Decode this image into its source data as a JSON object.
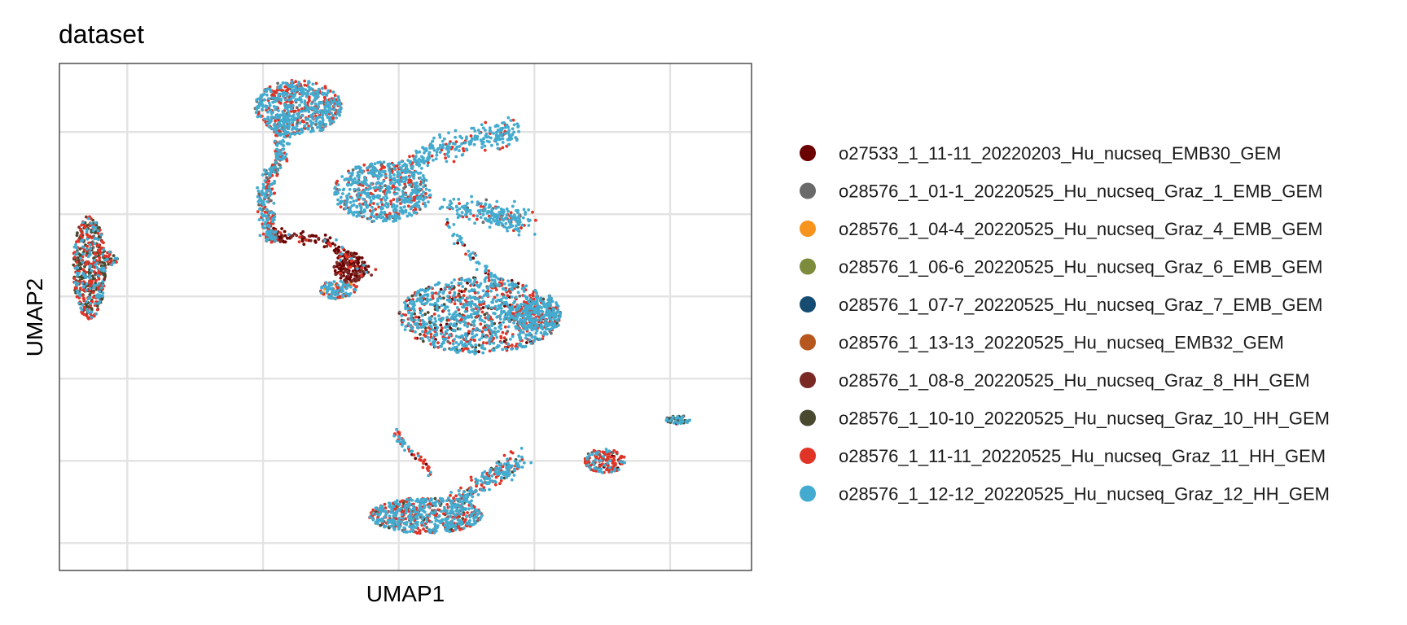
{
  "chart_data": {
    "type": "scatter",
    "title": "dataset",
    "xlabel": "UMAP1",
    "ylabel": "UMAP2",
    "xlim": [
      -15,
      10.5
    ],
    "ylim": [
      -11,
      7.5
    ],
    "xticks": [
      -12.5,
      -7.5,
      -2.5,
      2.5,
      7.5
    ],
    "yticks": [
      -10,
      -7,
      -4,
      -1,
      2,
      5
    ],
    "show_tick_labels": false,
    "grid": true,
    "legend_position": "right",
    "series": [
      {
        "name": "o27533_1_11-11_20220203_Hu_nucseq_EMB30_GEM",
        "color": "#6B0000"
      },
      {
        "name": "o28576_1_01-1_20220525_Hu_nucseq_Graz_1_EMB_GEM",
        "color": "#6A6A6A"
      },
      {
        "name": "o28576_1_04-4_20220525_Hu_nucseq_Graz_4_EMB_GEM",
        "color": "#F7941D"
      },
      {
        "name": "o28576_1_06-6_20220525_Hu_nucseq_Graz_6_EMB_GEM",
        "color": "#7D8B3C"
      },
      {
        "name": "o28576_1_07-7_20220525_Hu_nucseq_Graz_7_EMB_GEM",
        "color": "#164C72"
      },
      {
        "name": "o28576_1_13-13_20220525_Hu_nucseq_EMB32_GEM",
        "color": "#B5571E"
      },
      {
        "name": "o28576_1_08-8_20220525_Hu_nucseq_Graz_8_HH_GEM",
        "color": "#7A2925"
      },
      {
        "name": "o28576_1_10-10_20220525_Hu_nucseq_Graz_10_HH_GEM",
        "color": "#48492F"
      },
      {
        "name": "o28576_1_11-11_20220525_Hu_nucseq_Graz_11_HH_GEM",
        "color": "#E03427"
      },
      {
        "name": "o28576_1_12-12_20220525_Hu_nucseq_Graz_12_HH_GEM",
        "color": "#43ABCF"
      }
    ],
    "clusters": [
      {
        "shape": "ellipse",
        "x": -13.9,
        "y": 0.05,
        "rx": 0.6,
        "ry": 1.9,
        "n": 520,
        "mix": {
          "6": 1,
          "7": 4,
          "8": 4,
          "9": 3,
          "1": 1
        }
      },
      {
        "shape": "ellipse",
        "x": -13.1,
        "y": 0.4,
        "rx": 0.25,
        "ry": 0.25,
        "n": 30,
        "mix": {
          "7": 3,
          "8": 2,
          "9": 1
        }
      },
      {
        "shape": "ellipse",
        "x": -6.2,
        "y": 5.9,
        "rx": 1.6,
        "ry": 1.0,
        "n": 650,
        "mix": {
          "9": 8,
          "8": 3,
          "1": 1
        }
      },
      {
        "shape": "ellipse",
        "x": -6.8,
        "y": 4.8,
        "rx": 0.3,
        "ry": 0.9,
        "n": 90,
        "mix": {
          "9": 6,
          "8": 3,
          "1": 1
        }
      },
      {
        "shape": "line",
        "x": [
          -6.8,
          -7.3,
          -7.5,
          -7.3,
          -7.2
        ],
        "y": [
          4.2,
          3.4,
          2.6,
          1.8,
          1.2
        ],
        "w": 0.3,
        "n": 220,
        "mix": {
          "9": 5,
          "8": 4,
          "1": 2
        }
      },
      {
        "shape": "line",
        "x": [
          -7.3,
          -6.7,
          -5.8,
          -4.9,
          -4.4,
          -3.6
        ],
        "y": [
          1.2,
          1.2,
          1.1,
          0.9,
          0.4,
          -0.2
        ],
        "w": 0.25,
        "n": 140,
        "mix": {
          "0": 6,
          "6": 2,
          "9": 1,
          "8": 1
        }
      },
      {
        "shape": "ellipse",
        "x": -7.2,
        "y": 1.2,
        "rx": 0.25,
        "ry": 0.25,
        "n": 50,
        "mix": {
          "1": 4,
          "9": 3,
          "8": 2
        }
      },
      {
        "shape": "ellipse",
        "x": -4.3,
        "y": 0.05,
        "rx": 0.6,
        "ry": 0.55,
        "n": 150,
        "mix": {
          "0": 9,
          "6": 3,
          "8": 1
        }
      },
      {
        "shape": "ellipse",
        "x": -4.7,
        "y": -0.75,
        "rx": 0.7,
        "ry": 0.35,
        "n": 110,
        "mix": {
          "9": 6,
          "8": 3,
          "2": 1,
          "1": 1
        }
      },
      {
        "shape": "ellipse",
        "x": -3.1,
        "y": 2.8,
        "rx": 1.8,
        "ry": 1.1,
        "n": 620,
        "mix": {
          "9": 9,
          "8": 3,
          "1": 1
        }
      },
      {
        "shape": "line",
        "x": [
          -2.4,
          -1.4,
          -0.1,
          1.1,
          1.8
        ],
        "y": [
          3.6,
          4.2,
          4.6,
          4.9,
          5.0
        ],
        "w": 0.45,
        "n": 280,
        "mix": {
          "9": 9,
          "8": 2
        }
      },
      {
        "shape": "line",
        "x": [
          -0.6,
          0.6,
          1.5,
          2.2
        ],
        "y": [
          2.4,
          2.0,
          1.9,
          1.7
        ],
        "w": 0.45,
        "n": 220,
        "mix": {
          "9": 9,
          "8": 2,
          "1": 1
        }
      },
      {
        "shape": "line",
        "x": [
          -0.8,
          -0.1,
          0.6,
          1.1
        ],
        "y": [
          1.8,
          0.8,
          0.0,
          -0.4
        ],
        "w": 0.15,
        "n": 50,
        "mix": {
          "9": 6,
          "0": 2,
          "8": 1
        }
      },
      {
        "shape": "ellipse",
        "x": 0.5,
        "y": -1.7,
        "rx": 3.0,
        "ry": 1.4,
        "n": 1100,
        "mix": {
          "9": 9,
          "8": 4,
          "0": 1,
          "1": 1,
          "7": 1
        }
      },
      {
        "shape": "ellipse",
        "x": 2.5,
        "y": -1.7,
        "rx": 1.0,
        "ry": 0.5,
        "n": 200,
        "mix": {
          "9": 7,
          "8": 4
        }
      },
      {
        "shape": "ellipse",
        "x": -1.5,
        "y": -9.0,
        "rx": 2.1,
        "ry": 0.65,
        "n": 620,
        "mix": {
          "9": 7,
          "8": 4,
          "7": 1,
          "1": 1
        }
      },
      {
        "shape": "line",
        "x": [
          -0.5,
          0.5,
          1.3,
          2.0
        ],
        "y": [
          -8.6,
          -7.8,
          -7.4,
          -7.0
        ],
        "w": 0.35,
        "n": 220,
        "mix": {
          "9": 7,
          "8": 4,
          "7": 1
        }
      },
      {
        "shape": "line",
        "x": [
          -2.6,
          -2.3,
          -1.6,
          -1.2
        ],
        "y": [
          -6.0,
          -6.4,
          -7.0,
          -7.6
        ],
        "w": 0.15,
        "n": 50,
        "mix": {
          "8": 5,
          "9": 4,
          "0": 1
        }
      },
      {
        "shape": "ellipse",
        "x": 5.1,
        "y": -7.0,
        "rx": 0.75,
        "ry": 0.45,
        "n": 160,
        "mix": {
          "8": 5,
          "9": 4,
          "1": 2,
          "0": 1
        }
      },
      {
        "shape": "ellipse",
        "x": 7.8,
        "y": -5.5,
        "rx": 0.45,
        "ry": 0.15,
        "n": 50,
        "mix": {
          "9": 4,
          "7": 3,
          "0": 2,
          "1": 1
        }
      }
    ]
  }
}
